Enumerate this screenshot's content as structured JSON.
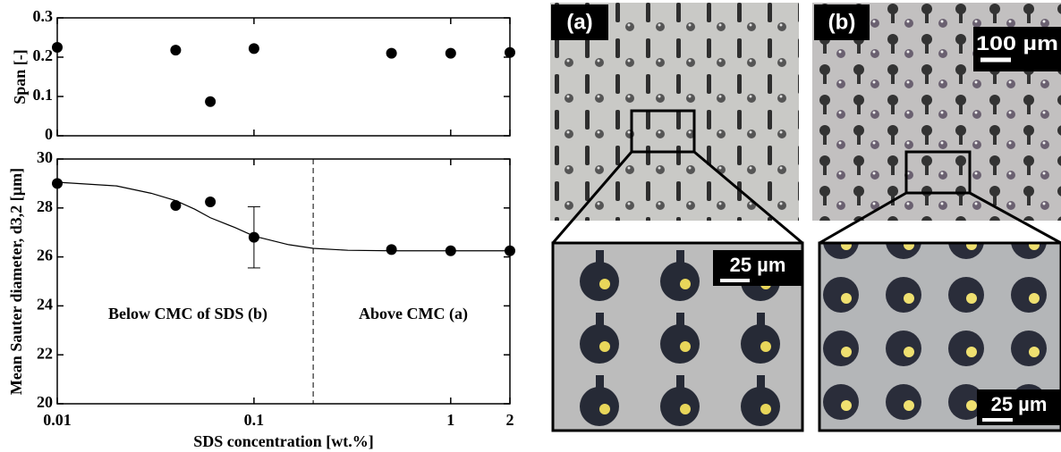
{
  "chart_data": [
    {
      "type": "scatter",
      "ylabel": "Span [-]",
      "log_x": true,
      "xlim": [
        0.01,
        2
      ],
      "xticks": [
        0.01,
        0.1,
        1,
        2
      ],
      "ylim": [
        0,
        0.3
      ],
      "yticks": [
        0,
        0.1,
        0.2,
        0.3
      ],
      "color": "#000000",
      "x": [
        0.01,
        0.04,
        0.06,
        0.1,
        0.5,
        1,
        2
      ],
      "values": [
        0.225,
        0.218,
        0.087,
        0.222,
        0.21,
        0.21,
        0.212
      ]
    },
    {
      "type": "scatter",
      "ylabel": "Mean Sauter diameter, d3,2 [µm]",
      "xlabel": "SDS concentration [wt.%]",
      "log_x": true,
      "xlim": [
        0.01,
        2
      ],
      "xticks": [
        0.01,
        0.1,
        1,
        2
      ],
      "ylim": [
        20,
        30
      ],
      "yticks": [
        20,
        22,
        24,
        26,
        28,
        30
      ],
      "color": "#000000",
      "x": [
        0.01,
        0.04,
        0.06,
        0.1,
        0.5,
        1,
        2
      ],
      "values": [
        29.0,
        28.1,
        28.25,
        26.8,
        26.3,
        26.25,
        26.25
      ],
      "errors": [
        null,
        null,
        null,
        1.25,
        null,
        null,
        null
      ],
      "fit": {
        "x": [
          0.01,
          0.02,
          0.03,
          0.04,
          0.05,
          0.06,
          0.08,
          0.1,
          0.15,
          0.2,
          0.3,
          0.5,
          1,
          2
        ],
        "values": [
          29.05,
          28.9,
          28.6,
          28.3,
          27.95,
          27.6,
          27.2,
          26.85,
          26.5,
          26.35,
          26.27,
          26.25,
          26.25,
          26.25
        ]
      },
      "vline": 0.2,
      "annotations": [
        "Below CMC of SDS (b)",
        "Above CMC (a)"
      ]
    }
  ],
  "micrographs": [
    {
      "label": "(a)",
      "zoom_scale": "25 µm"
    },
    {
      "label": "(b)",
      "scale": "100 µm",
      "zoom_scale": "25 µm"
    }
  ]
}
